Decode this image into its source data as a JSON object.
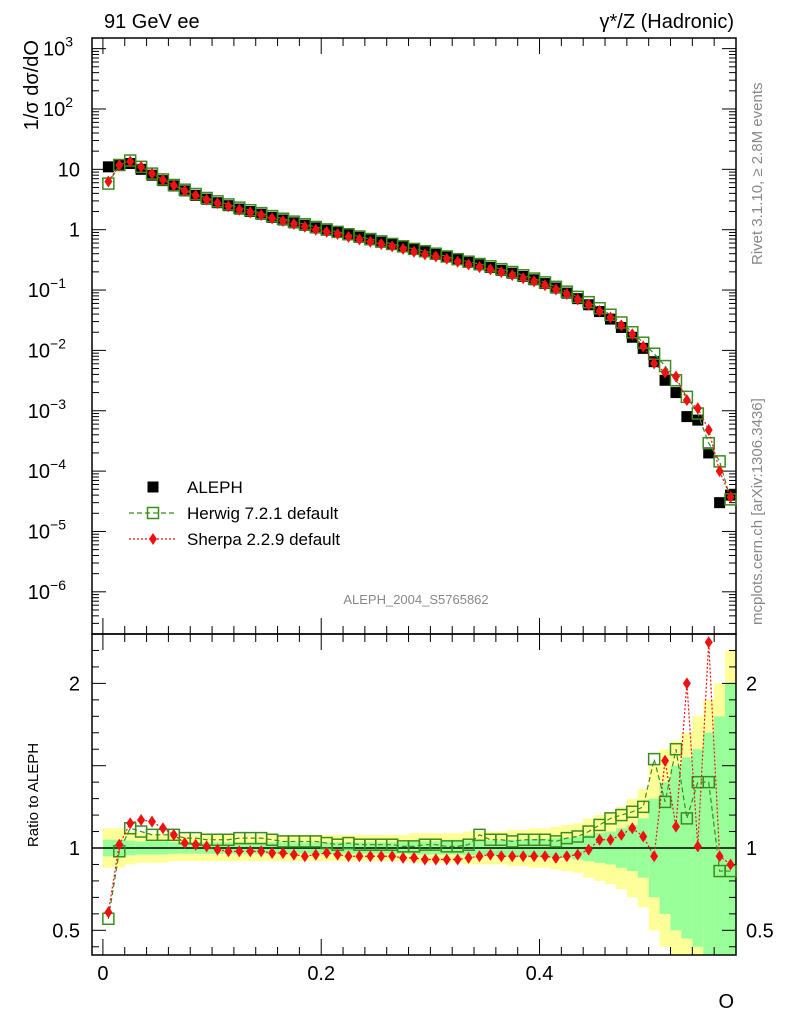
{
  "header": {
    "left_title": "91 GeV ee",
    "right_title": "γ*/Z (Hadronic)"
  },
  "side_labels": {
    "rivet": "Rivet 3.1.10, ≥ 2.8M events",
    "mcplots": "mcplots.cern.ch [arXiv:1306.3436]"
  },
  "watermark": "ALEPH_2004_S5765862",
  "colors": {
    "data": "#000000",
    "herwig": "#3a8c1e",
    "sherpa": "#ee1111",
    "band_outer": "#ffff99",
    "band_inner": "#99ff99"
  },
  "chart_data": [
    {
      "type": "scatter",
      "panel": "main",
      "ylabel": "1/σ dσ/dO",
      "xlim": [
        -0.01,
        0.58
      ],
      "ylim": [
        2e-07,
        1500
      ],
      "log_y": true,
      "y_tick_labels": [
        "10^-6",
        "10^-5",
        "10^-4",
        "10^-3",
        "10^-2",
        "10^-1",
        "1",
        "10",
        "10^2",
        "10^3"
      ],
      "legend_placement": "lower-left",
      "x": [
        0.005,
        0.015,
        0.025,
        0.035,
        0.045,
        0.055,
        0.065,
        0.075,
        0.085,
        0.095,
        0.105,
        0.115,
        0.125,
        0.135,
        0.145,
        0.155,
        0.165,
        0.175,
        0.185,
        0.195,
        0.205,
        0.215,
        0.225,
        0.235,
        0.245,
        0.255,
        0.265,
        0.275,
        0.285,
        0.295,
        0.305,
        0.315,
        0.325,
        0.335,
        0.345,
        0.355,
        0.365,
        0.375,
        0.385,
        0.395,
        0.405,
        0.415,
        0.425,
        0.435,
        0.445,
        0.455,
        0.465,
        0.475,
        0.485,
        0.495,
        0.505,
        0.515,
        0.525,
        0.535,
        0.545,
        0.555,
        0.565,
        0.575
      ],
      "series": [
        {
          "name": "ALEPH",
          "marker": "filled-square",
          "values": [
            11,
            12,
            12.5,
            10,
            8,
            6.5,
            5.3,
            4.4,
            3.7,
            3.2,
            2.8,
            2.5,
            2.2,
            2.0,
            1.8,
            1.6,
            1.45,
            1.3,
            1.18,
            1.07,
            0.98,
            0.9,
            0.82,
            0.75,
            0.68,
            0.62,
            0.57,
            0.52,
            0.47,
            0.43,
            0.39,
            0.355,
            0.32,
            0.29,
            0.262,
            0.236,
            0.212,
            0.19,
            0.168,
            0.148,
            0.128,
            0.108,
            0.089,
            0.072,
            0.057,
            0.044,
            0.033,
            0.024,
            0.0165,
            0.0108,
            0.0065,
            0.0032,
            0.002,
            0.0008,
            0.0007,
            0.0002,
            3e-05,
            4e-05
          ]
        },
        {
          "name": "Herwig 7.2.1 default",
          "marker": "open-square",
          "values": [
            5.8,
            11.8,
            14,
            11,
            8.5,
            6.8,
            5.5,
            4.6,
            3.9,
            3.35,
            2.95,
            2.62,
            2.32,
            2.1,
            1.88,
            1.68,
            1.52,
            1.36,
            1.23,
            1.11,
            1.01,
            0.92,
            0.84,
            0.77,
            0.7,
            0.64,
            0.58,
            0.53,
            0.48,
            0.44,
            0.4,
            0.36,
            0.325,
            0.295,
            0.27,
            0.247,
            0.222,
            0.199,
            0.176,
            0.155,
            0.134,
            0.113,
            0.094,
            0.077,
            0.063,
            0.05,
            0.039,
            0.029,
            0.02,
            0.0134,
            0.0088,
            0.0055,
            0.0032,
            0.0017,
            0.0009,
            0.00029,
            0.000145,
            3.4e-05
          ]
        },
        {
          "name": "Sherpa 2.2.9 default",
          "marker": "filled-diamond",
          "values": [
            6.3,
            11.7,
            13.5,
            11,
            8.5,
            6.7,
            5.4,
            4.4,
            3.7,
            3.15,
            2.75,
            2.44,
            2.14,
            1.94,
            1.75,
            1.54,
            1.39,
            1.24,
            1.12,
            1.0,
            0.92,
            0.85,
            0.76,
            0.69,
            0.63,
            0.58,
            0.53,
            0.48,
            0.43,
            0.39,
            0.36,
            0.33,
            0.295,
            0.265,
            0.24,
            0.22,
            0.198,
            0.177,
            0.157,
            0.139,
            0.12,
            0.102,
            0.086,
            0.07,
            0.057,
            0.045,
            0.035,
            0.026,
            0.0185,
            0.0116,
            0.0061,
            0.0043,
            0.0037,
            0.0015,
            0.0011,
            0.00048,
            0.0001,
            3.7e-05
          ]
        }
      ]
    },
    {
      "type": "scatter",
      "panel": "ratio",
      "xlabel": "O",
      "ylabel": "Ratio to ALEPH",
      "xlim": [
        -0.01,
        0.58
      ],
      "ylim": [
        0.35,
        2.3
      ],
      "x_tick_labels": [
        "0",
        "0.2",
        "0.4"
      ],
      "y_tick_labels": [
        "0.5",
        "1",
        "2"
      ],
      "x": [
        0.005,
        0.015,
        0.025,
        0.035,
        0.045,
        0.055,
        0.065,
        0.075,
        0.085,
        0.095,
        0.105,
        0.115,
        0.125,
        0.135,
        0.145,
        0.155,
        0.165,
        0.175,
        0.185,
        0.195,
        0.205,
        0.215,
        0.225,
        0.235,
        0.245,
        0.255,
        0.265,
        0.275,
        0.285,
        0.295,
        0.305,
        0.315,
        0.325,
        0.335,
        0.345,
        0.355,
        0.365,
        0.375,
        0.385,
        0.395,
        0.405,
        0.415,
        0.425,
        0.435,
        0.445,
        0.455,
        0.465,
        0.475,
        0.485,
        0.495,
        0.505,
        0.515,
        0.525,
        0.535,
        0.545,
        0.555,
        0.565,
        0.575
      ],
      "band_outer": [
        0.12,
        0.12,
        0.1,
        0.09,
        0.09,
        0.09,
        0.08,
        0.08,
        0.08,
        0.08,
        0.08,
        0.08,
        0.08,
        0.08,
        0.08,
        0.08,
        0.08,
        0.08,
        0.08,
        0.08,
        0.08,
        0.08,
        0.08,
        0.08,
        0.08,
        0.08,
        0.08,
        0.08,
        0.09,
        0.09,
        0.09,
        0.09,
        0.09,
        0.1,
        0.1,
        0.1,
        0.1,
        0.11,
        0.11,
        0.12,
        0.12,
        0.13,
        0.14,
        0.15,
        0.18,
        0.2,
        0.22,
        0.25,
        0.3,
        0.36,
        0.5,
        0.6,
        0.65,
        0.7,
        0.8,
        0.9,
        1.0,
        1.2
      ],
      "band_inner": [
        0.05,
        0.05,
        0.045,
        0.04,
        0.04,
        0.04,
        0.035,
        0.035,
        0.035,
        0.035,
        0.035,
        0.035,
        0.035,
        0.035,
        0.035,
        0.035,
        0.035,
        0.035,
        0.035,
        0.035,
        0.035,
        0.035,
        0.035,
        0.035,
        0.035,
        0.035,
        0.035,
        0.035,
        0.04,
        0.04,
        0.04,
        0.04,
        0.04,
        0.045,
        0.045,
        0.045,
        0.045,
        0.05,
        0.05,
        0.055,
        0.055,
        0.06,
        0.06,
        0.07,
        0.08,
        0.09,
        0.1,
        0.12,
        0.14,
        0.18,
        0.3,
        0.4,
        0.5,
        0.55,
        0.6,
        0.7,
        0.8,
        1.0
      ],
      "series": [
        {
          "name": "Herwig 7.2.1 default",
          "values": [
            0.57,
            0.98,
            1.12,
            1.1,
            1.08,
            1.08,
            1.08,
            1.06,
            1.06,
            1.05,
            1.05,
            1.05,
            1.06,
            1.06,
            1.06,
            1.05,
            1.04,
            1.04,
            1.04,
            1.04,
            1.03,
            1.02,
            1.03,
            1.02,
            1.02,
            1.02,
            1.02,
            1.01,
            1.01,
            1.02,
            1.02,
            1.01,
            1.01,
            1.02,
            1.08,
            1.05,
            1.05,
            1.04,
            1.05,
            1.05,
            1.05,
            1.04,
            1.06,
            1.07,
            1.1,
            1.14,
            1.18,
            1.2,
            1.22,
            1.25,
            1.54,
            1.28,
            1.6,
            1.18,
            1.4,
            1.4,
            0.86,
            0.86
          ]
        },
        {
          "name": "Sherpa 2.2.9 default",
          "values": [
            0.61,
            1.02,
            1.15,
            1.17,
            1.16,
            1.12,
            1.08,
            1.03,
            1.02,
            1.01,
            0.99,
            0.98,
            0.98,
            0.98,
            0.98,
            0.97,
            0.97,
            0.96,
            0.95,
            0.96,
            0.97,
            0.96,
            0.95,
            0.95,
            0.95,
            0.95,
            0.95,
            0.94,
            0.94,
            0.93,
            0.93,
            0.93,
            0.93,
            0.94,
            0.95,
            0.96,
            0.95,
            0.95,
            0.95,
            0.95,
            0.95,
            0.94,
            0.95,
            0.96,
            0.99,
            1.05,
            1.05,
            1.08,
            1.12,
            1.07,
            0.95,
            1.53,
            1.13,
            2.0,
            1.01,
            2.25,
            0.95,
            0.9
          ]
        }
      ]
    }
  ]
}
